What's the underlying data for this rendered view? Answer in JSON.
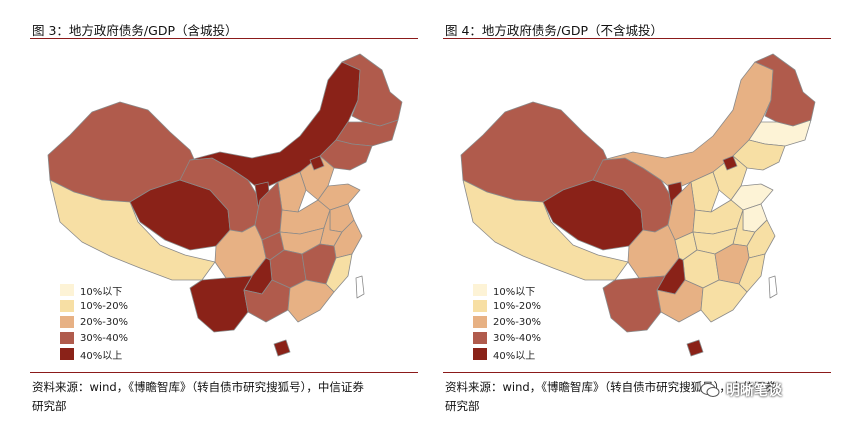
{
  "figures": [
    {
      "title": "图 3：地方政府债务/GDP（含城投）",
      "source_line1": "资料来源：wind，《博瞻智库》（转自债市研究搜狐号），中信证券",
      "source_line2": "研究部"
    },
    {
      "title": "图 4：地方政府债务/GDP（不含城投）",
      "source_line1": "资料来源：wind，《博瞻智库》（转自债市研究搜狐号），中信证券",
      "source_line2": "研究部"
    }
  ],
  "legend": [
    {
      "label": "10%以下",
      "color": "#fdf3d6"
    },
    {
      "label": "10%-20%",
      "color": "#f7dfa4"
    },
    {
      "label": "20%-30%",
      "color": "#e7b184"
    },
    {
      "label": "30%-40%",
      "color": "#b05b4c"
    },
    {
      "label": "40%以上",
      "color": "#8a2218"
    }
  ],
  "watermark": "明晰笔谈"
}
